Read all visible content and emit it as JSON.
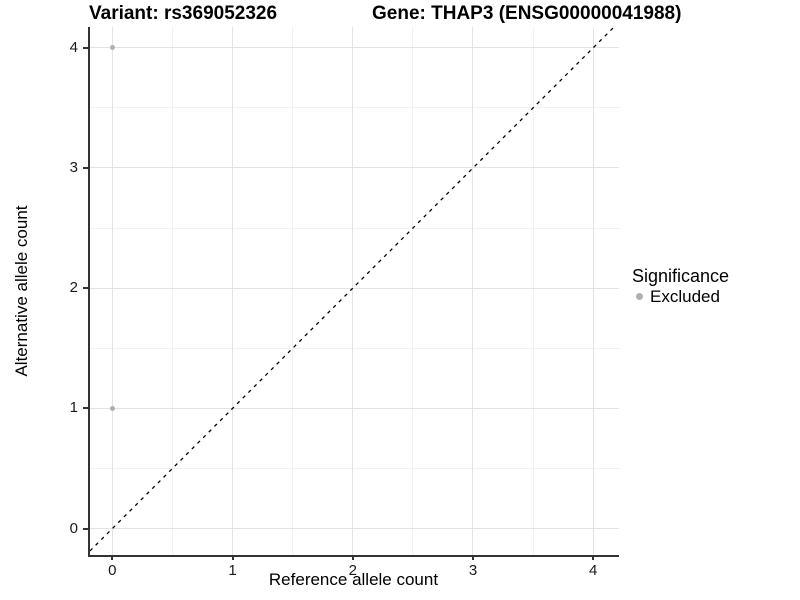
{
  "titles": {
    "variant": "Variant: rs369052326",
    "gene": "Gene: THAP3 (ENSG00000041988)"
  },
  "chart_data": {
    "type": "scatter",
    "xlabel": "Reference allele count",
    "ylabel": "Alternative allele count",
    "xlim": [
      -0.186,
      4.198
    ],
    "ylim": [
      -0.22,
      4.173
    ],
    "x_ticks": [
      0,
      1,
      2,
      3,
      4
    ],
    "y_ticks": [
      0,
      1,
      2,
      3,
      4
    ],
    "x_minor_gridlines": [
      0.5,
      1.5,
      2.5,
      3.5
    ],
    "y_minor_gridlines": [
      0.5,
      1.5,
      2.5,
      3.5
    ],
    "grid": true,
    "reference_line": {
      "equation": "y = x",
      "linetype": "dashed",
      "color": "#000000"
    },
    "series": [
      {
        "name": "Excluded",
        "color": "#b0b0b0",
        "points": [
          {
            "x": 0,
            "y": 4
          },
          {
            "x": 0,
            "y": 1
          }
        ]
      }
    ],
    "legend": {
      "title": "Significance",
      "position": "right",
      "entries": [
        {
          "label": "Excluded",
          "color": "#b0b0b0"
        }
      ]
    },
    "colors": {
      "grid_major": "#e3e3e3",
      "grid_minor": "#f1f1f1",
      "axis_line": "#333333",
      "tick_text": "#1a1a1a",
      "background": "#ffffff"
    }
  }
}
